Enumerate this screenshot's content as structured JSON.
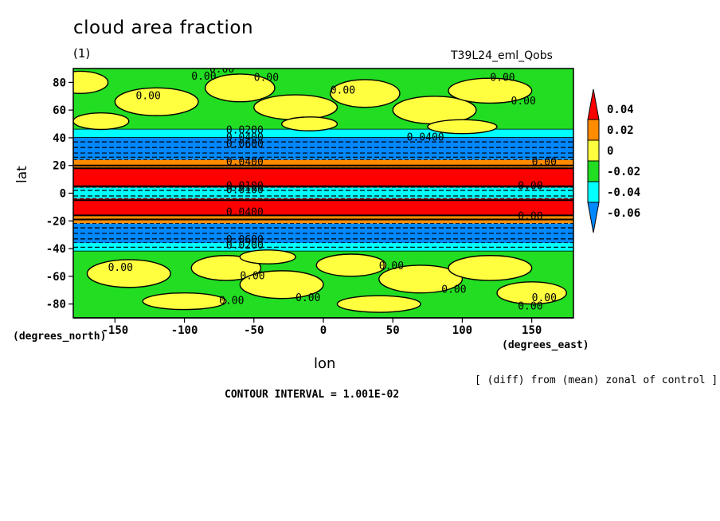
{
  "chart_data": {
    "type": "heatmap",
    "title": "cloud area fraction",
    "subtitle": "(1)",
    "run_label": "T39L24_eml_Qobs",
    "xlabel": "lon",
    "ylabel": "lat",
    "x_units": "(degrees_east)",
    "y_units": "(degrees_north)",
    "xlim": [
      -180,
      180
    ],
    "ylim": [
      -90,
      90
    ],
    "x_ticks": [
      "-150",
      "-100",
      "-50",
      "0",
      "50",
      "100",
      "150"
    ],
    "x_tick_values": [
      -150,
      -100,
      -50,
      0,
      50,
      100,
      150
    ],
    "y_ticks": [
      "80",
      "60",
      "40",
      "20",
      "0",
      "-20",
      "-40",
      "-60",
      "-80"
    ],
    "y_tick_values": [
      80,
      60,
      40,
      20,
      0,
      -20,
      -40,
      -60,
      -80
    ],
    "colorbar": {
      "labels": [
        "0.04",
        "0.02",
        "0",
        "-0.02",
        "-0.04",
        "-0.06"
      ],
      "levels": [
        0.04,
        0.02,
        0,
        -0.02,
        -0.04,
        -0.06
      ],
      "colors": [
        "#ff0000",
        "#ff8c00",
        "#ffff40",
        "#22dd22",
        "#00ffff",
        "#0088ff"
      ]
    },
    "zonal_bands": [
      {
        "lat_from": 90,
        "lat_to": 46,
        "level": "0 to -0.02",
        "color": "#22dd22"
      },
      {
        "lat_from": 46,
        "lat_to": 40,
        "level": "-0.04",
        "color": "#00ffff"
      },
      {
        "lat_from": 40,
        "lat_to": 24,
        "level": "-0.06",
        "color": "#0088ff"
      },
      {
        "lat_from": 24,
        "lat_to": 18,
        "level": "0.02",
        "color": "#ff8c00"
      },
      {
        "lat_from": 18,
        "lat_to": 4,
        "level": "0.04",
        "color": "#ff0000"
      },
      {
        "lat_from": 4,
        "lat_to": -4,
        "level": "-0.04",
        "color": "#00ffff"
      },
      {
        "lat_from": -4,
        "lat_to": -16,
        "level": "0.04",
        "color": "#ff0000"
      },
      {
        "lat_from": -16,
        "lat_to": -22,
        "level": "0.02",
        "color": "#ff8c00"
      },
      {
        "lat_from": -22,
        "lat_to": -36,
        "level": "-0.06",
        "color": "#0088ff"
      },
      {
        "lat_from": -36,
        "lat_to": -42,
        "level": "-0.04",
        "color": "#00ffff"
      },
      {
        "lat_from": -42,
        "lat_to": -90,
        "level": "0 to -0.02",
        "color": "#22dd22"
      }
    ],
    "contour_labels": [
      "0.00",
      "0.0200",
      "0.0400",
      "0.0600",
      "0.0100"
    ],
    "contour_interval_text": "CONTOUR INTERVAL = 1.001E-02",
    "note": "[ (diff) from (mean) zonal of control ]"
  }
}
